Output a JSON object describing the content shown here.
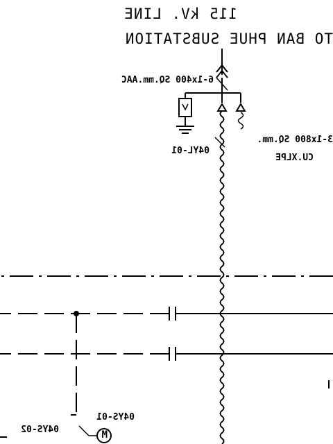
{
  "line": {
    "voltage_title": "115 kV. LINE",
    "destination": "TO BAN PHUE SUBSTATION"
  },
  "labels": {
    "incoming_conductor": "6-1x400 SQ.mm.AAC",
    "surge_arrester_tag": "04YL-01",
    "cable_size": "3-1x800 SQ.mm.",
    "cable_type": "CU.XLPE",
    "switch_tag_1": "04YS-01",
    "switch_tag_2": "04YS-02",
    "motor_symbol": "M"
  },
  "note": "Drawing is rendered mirror-reversed (horizontally flipped), as in the original image."
}
